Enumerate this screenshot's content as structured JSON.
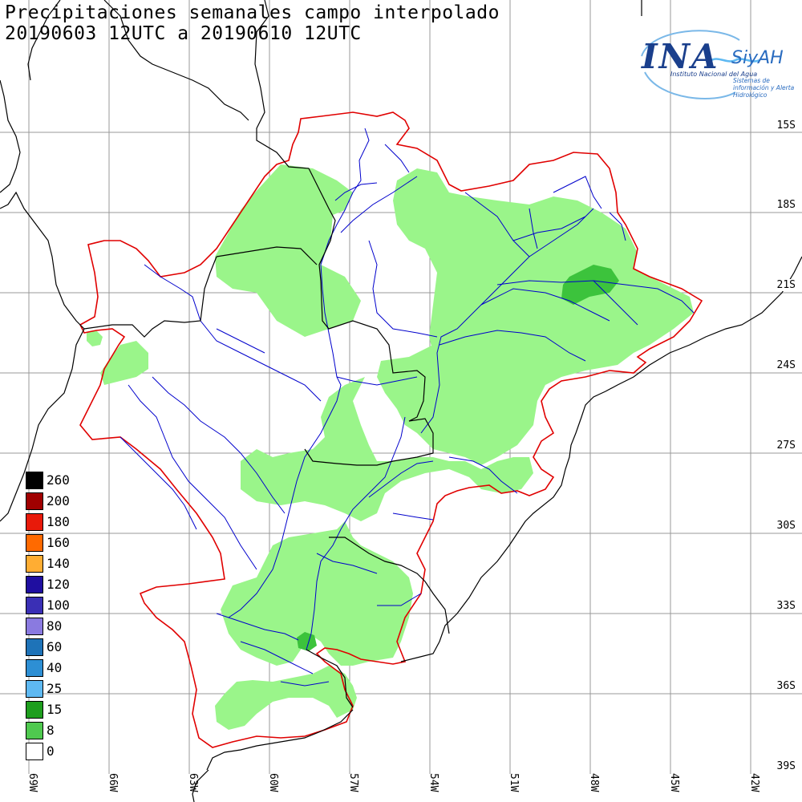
{
  "title": {
    "line1": "Precipitaciones semanales campo interpolado",
    "line2": "20190603 12UTC a 20190610 12UTC"
  },
  "logo": {
    "main": "INA",
    "brand": "SiyAH",
    "subtitle": "Instituto Nacional del Agua",
    "tagline": "Sistemas de información y Alerta Hidrológico"
  },
  "axes": {
    "lat_labels": [
      "15S",
      "18S",
      "21S",
      "24S",
      "27S",
      "30S",
      "33S",
      "36S",
      "39S"
    ],
    "lon_labels": [
      "69W",
      "66W",
      "63W",
      "60W",
      "57W",
      "54W",
      "51W",
      "48W",
      "45W",
      "42W"
    ]
  },
  "legend": {
    "units_values": [
      "260",
      "200",
      "180",
      "160",
      "140",
      "120",
      "100",
      "80",
      "60",
      "40",
      "25",
      "15",
      "8",
      "0"
    ],
    "colors": [
      "#000000",
      "#a00000",
      "#e81a0a",
      "#ff6a00",
      "#ffad33",
      "#1f0ea0",
      "#3a2fb5",
      "#8a7ae0",
      "#1e73b8",
      "#2d8fd4",
      "#5eb9f2",
      "#1e9e1e",
      "#4fc94f",
      "#ffffff"
    ]
  },
  "colors": {
    "precip_8": "#9af58a",
    "precip_15": "#3cc33c",
    "basin_outline": "#e00000",
    "rivers": "#0000cc",
    "borders": "#000000",
    "grid": "#888888"
  }
}
